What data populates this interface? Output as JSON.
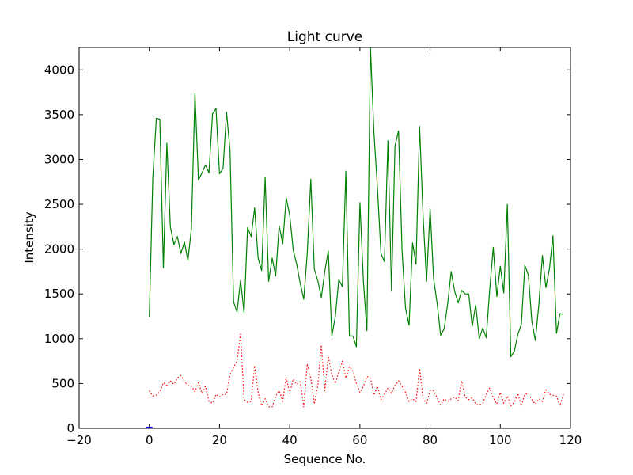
{
  "chart_data": {
    "type": "line",
    "title": "Light curve",
    "xlabel": "Sequence No.",
    "ylabel": "Intensity",
    "xlim": [
      -20,
      120
    ],
    "ylim": [
      0,
      4250
    ],
    "x_ticks": [
      -20,
      0,
      20,
      40,
      60,
      80,
      100,
      120
    ],
    "y_ticks": [
      0,
      500,
      1000,
      1500,
      2000,
      2500,
      3000,
      3500,
      4000
    ],
    "grid": false,
    "legend": "none",
    "series": [
      {
        "color": "#008000",
        "style": "solid",
        "values": [
          1240,
          2790,
          3460,
          3450,
          1790,
          3180,
          2250,
          2050,
          2140,
          1950,
          2080,
          1870,
          2230,
          3740,
          2770,
          2850,
          2940,
          2850,
          3510,
          3570,
          2840,
          2900,
          3530,
          3100,
          1410,
          1300,
          1650,
          1290,
          2240,
          2140,
          2460,
          1900,
          1760,
          2800,
          1640,
          1900,
          1700,
          2260,
          2060,
          2570,
          2380,
          1990,
          1830,
          1620,
          1440,
          1950,
          2780,
          1780,
          1650,
          1460,
          1750,
          1980,
          1030,
          1250,
          1660,
          1580,
          2870,
          1030,
          1030,
          910,
          2520,
          1640,
          1090,
          4250,
          3300,
          2690,
          1950,
          1860,
          3210,
          1530,
          3150,
          3320,
          1990,
          1340,
          1150,
          2070,
          1830,
          3370,
          2370,
          1640,
          2450,
          1670,
          1400,
          1040,
          1110,
          1390,
          1750,
          1530,
          1400,
          1540,
          1500,
          1500,
          1140,
          1380,
          1000,
          1120,
          1010,
          1560,
          2020,
          1470,
          1810,
          1510,
          2500,
          800,
          860,
          1050,
          1160,
          1820,
          1710,
          1190,
          980,
          1390,
          1930,
          1570,
          1780,
          2150,
          1060,
          1280,
          1270
        ]
      },
      {
        "color": "#ff0000",
        "style": "dotted",
        "values": [
          420,
          360,
          370,
          410,
          510,
          480,
          530,
          490,
          560,
          590,
          520,
          480,
          470,
          410,
          510,
          390,
          470,
          300,
          280,
          380,
          350,
          380,
          380,
          600,
          680,
          750,
          1050,
          320,
          290,
          300,
          700,
          400,
          250,
          330,
          240,
          240,
          360,
          420,
          300,
          570,
          390,
          550,
          490,
          520,
          240,
          720,
          560,
          270,
          470,
          930,
          420,
          800,
          600,
          500,
          630,
          750,
          560,
          690,
          640,
          500,
          400,
          470,
          580,
          560,
          370,
          470,
          320,
          380,
          450,
          390,
          480,
          530,
          470,
          400,
          300,
          330,
          300,
          670,
          330,
          280,
          420,
          420,
          340,
          260,
          330,
          300,
          330,
          350,
          310,
          530,
          350,
          320,
          340,
          270,
          260,
          280,
          380,
          450,
          340,
          270,
          400,
          280,
          360,
          250,
          290,
          390,
          250,
          380,
          390,
          320,
          270,
          330,
          300,
          430,
          380,
          370,
          360,
          250,
          380
        ]
      },
      {
        "color": "#0000ff",
        "style": "solid",
        "values": [
          5
        ]
      }
    ]
  }
}
